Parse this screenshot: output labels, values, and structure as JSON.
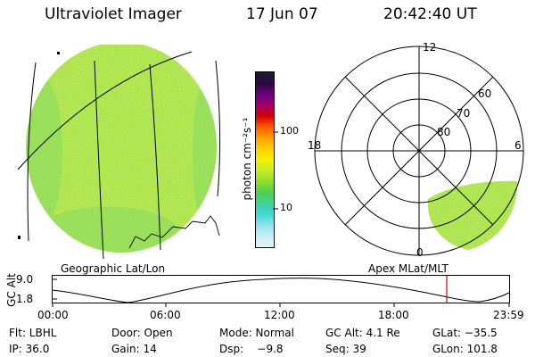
{
  "header": {
    "title": "Ultraviolet Imager",
    "date": "17 Jun 07",
    "time": "20:42:40 UT"
  },
  "left_panel": {
    "label": "Geographic Lat/Lon"
  },
  "colorbar": {
    "unit_label": "photon cm⁻²s⁻¹",
    "ticks": [
      "100",
      "10"
    ],
    "colors": [
      "#1a1a3a",
      "#2b0a3d",
      "#6a0080",
      "#a0006a",
      "#d40000",
      "#ff5a00",
      "#ff9f00",
      "#ffd000",
      "#f2f200",
      "#c8ec2a",
      "#8ede2a",
      "#4fd04f",
      "#3ad29a",
      "#40d8d8",
      "#90e4ec",
      "#c9eef2",
      "#e6f4f6"
    ]
  },
  "right_panel": {
    "label": "Apex MLat/MLT",
    "mlt_labels": [
      "12",
      "18",
      "6",
      "0"
    ],
    "mlat_labels": [
      "60",
      "70",
      "80"
    ]
  },
  "altitude_plot": {
    "axis_label": "GC Alt",
    "y_ticks": [
      "9.0",
      "1.8"
    ],
    "x_ticks": [
      "00:00",
      "06:00",
      "12:00",
      "18:00",
      "23:59"
    ],
    "marker_color": "#d40000"
  },
  "info": {
    "flt": "Flt: LBHL",
    "door": "Door: Open",
    "mode": "Mode: Normal",
    "gc_alt": "GC Alt: 4.1 Re",
    "glat": "GLat: −35.5",
    "ip": "IP: 36.0",
    "gain": "Gain: 14",
    "dsp": "Dsp:    −9.8",
    "seq": "Seq: 39",
    "glon": "GLon: 101.8"
  }
}
